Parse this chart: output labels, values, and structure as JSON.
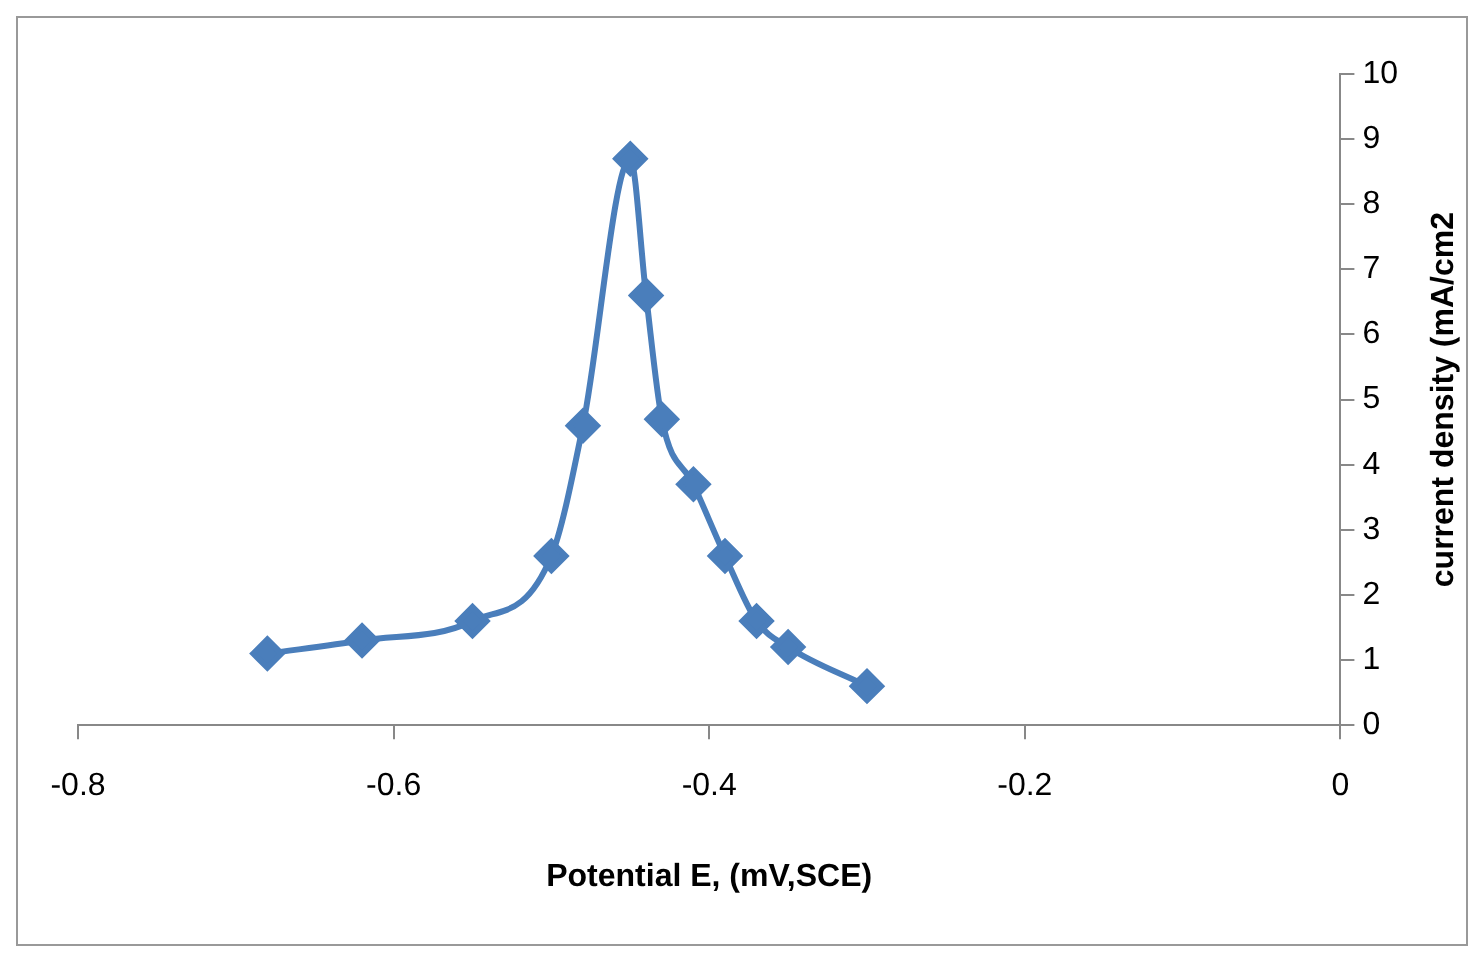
{
  "chart_data": {
    "type": "line",
    "xlabel": "Potential E, (mV,SCE)",
    "ylabel": "current density (mA/cm2",
    "series": [
      {
        "color": "#4a7ebb",
        "x": [
          -0.68,
          -0.62,
          -0.55,
          -0.5,
          -0.48,
          -0.45,
          -0.44,
          -0.43,
          -0.41,
          -0.39,
          -0.37,
          -0.35,
          -0.3
        ],
        "values": [
          1.1,
          1.3,
          1.6,
          2.6,
          4.6,
          8.7,
          6.6,
          4.7,
          3.7,
          2.6,
          1.6,
          1.2,
          0.6
        ]
      }
    ],
    "xlim": [
      -0.8,
      0
    ],
    "xticks": [
      -0.8,
      -0.6,
      -0.4,
      -0.2,
      0
    ],
    "ylim": [
      0,
      10
    ],
    "yticks": [
      0,
      1,
      2,
      3,
      4,
      5,
      6,
      7,
      8,
      9,
      10
    ],
    "grid": false,
    "legend": false,
    "marker": "diamond",
    "line_style": "solid"
  }
}
